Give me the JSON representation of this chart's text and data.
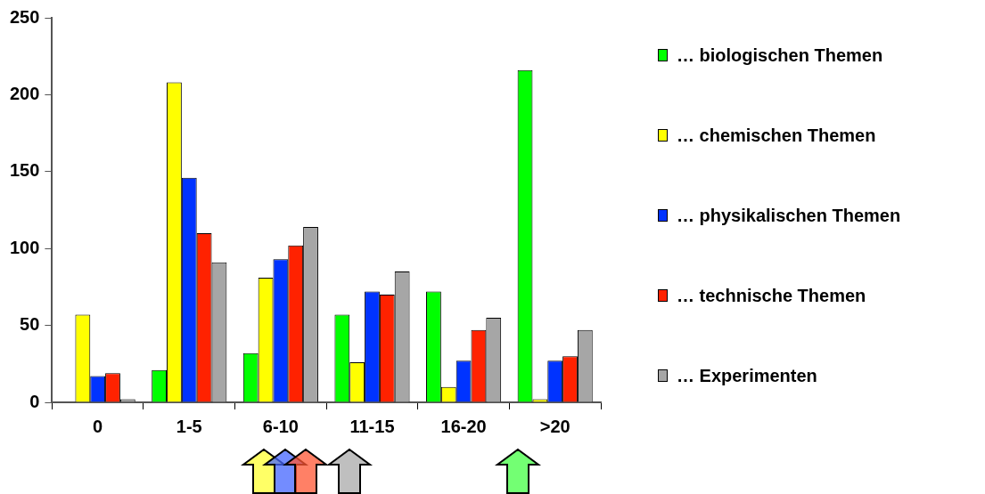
{
  "chart_data": {
    "type": "bar",
    "categories": [
      "0",
      "1-5",
      "6-10",
      "11-15",
      "16-20",
      ">20"
    ],
    "series": [
      {
        "name": "… biologischen Themen",
        "color": "#00ff00",
        "values": [
          0,
          21,
          32,
          57,
          72,
          216
        ]
      },
      {
        "name": "… chemischen Themen",
        "color": "#ffff00",
        "values": [
          57,
          208,
          81,
          26,
          10,
          2
        ]
      },
      {
        "name": "… physikalischen Themen",
        "color": "#0033ff",
        "values": [
          17,
          146,
          93,
          72,
          27,
          27
        ]
      },
      {
        "name": "… technische Themen",
        "color": "#ff2200",
        "values": [
          19,
          110,
          102,
          70,
          47,
          30
        ]
      },
      {
        "name": "… Experimenten",
        "color": "#a6a6a6",
        "values": [
          2,
          91,
          114,
          85,
          55,
          47
        ]
      }
    ],
    "ylim": [
      0,
      250
    ],
    "yticks": [
      0,
      50,
      100,
      150,
      200,
      250
    ],
    "legend": "right"
  }
}
